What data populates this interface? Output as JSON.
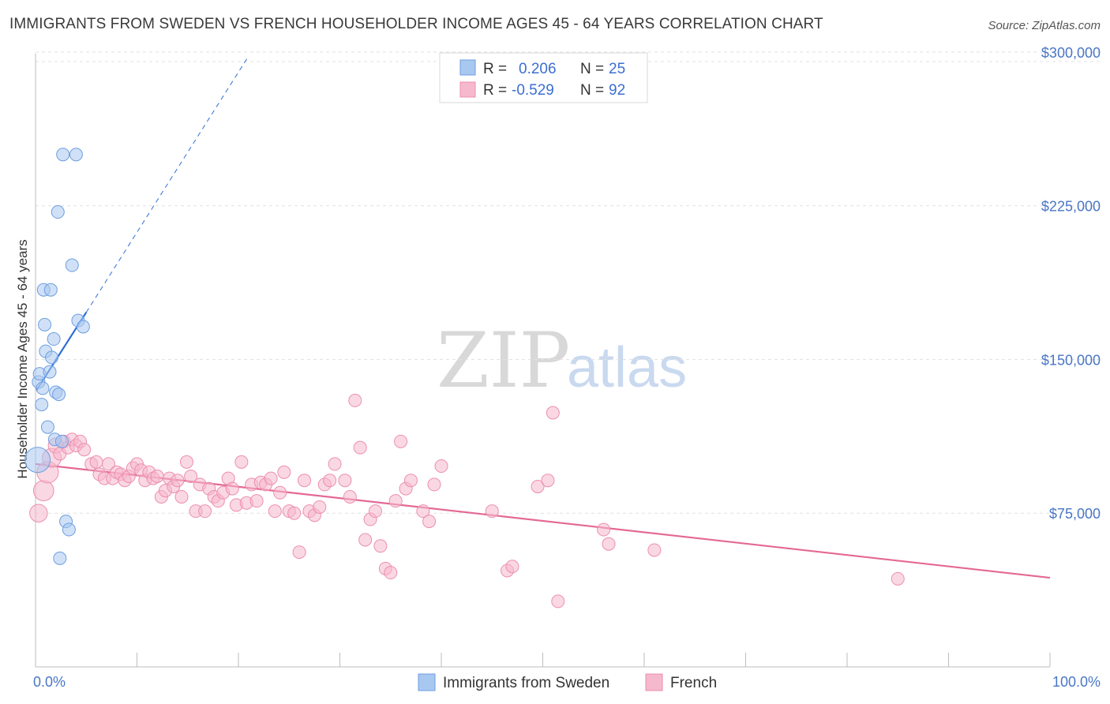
{
  "title": "IMMIGRANTS FROM SWEDEN VS FRENCH HOUSEHOLDER INCOME AGES 45 - 64 YEARS CORRELATION CHART",
  "source": "Source: ZipAtlas.com",
  "watermark": {
    "zip": "ZIP",
    "atlas": "atlas"
  },
  "colors": {
    "blue_fill": "#a9c8f0",
    "blue_stroke": "#6d9ee0",
    "blue_line": "#2f6fd6",
    "pink_fill": "#f6b8cc",
    "pink_stroke": "#ec8fae",
    "pink_line": "#e46895",
    "grid": "#e2e2e2",
    "axis_label": "#4a76c6"
  },
  "legend": {
    "rows": [
      {
        "r_label": "R =",
        "r_value": "0.206",
        "n_label": "N =",
        "n_value": "25",
        "series": "blue"
      },
      {
        "r_label": "R =",
        "r_value": "-0.529",
        "n_label": "N =",
        "n_value": "92",
        "series": "pink"
      }
    ]
  },
  "chart_data": {
    "type": "scatter",
    "title": "IMMIGRANTS FROM SWEDEN VS FRENCH HOUSEHOLDER INCOME AGES 45 - 64 YEARS CORRELATION CHART",
    "xlabel": "",
    "ylabel": "Householder Income Ages 45 - 64 years",
    "xlim": [
      0,
      100
    ],
    "ylim": [
      0,
      310000
    ],
    "x_tick_labels": [
      "0.0%",
      "100.0%"
    ],
    "y_ticks": [
      75000,
      150000,
      225000,
      300000
    ],
    "y_tick_labels": [
      "$75,000",
      "$150,000",
      "$225,000",
      "$300,000"
    ],
    "grid": true,
    "legend_position": "top-center",
    "series": [
      {
        "name": "Immigrants from Sweden",
        "color": "blue",
        "trend": {
          "x": [
            0.1,
            5.0
          ],
          "y": [
            135000,
            173000
          ],
          "extended_to": [
            21.0,
            298000
          ]
        },
        "points": [
          [
            0.2,
            101000,
            2.0
          ],
          [
            0.3,
            139000,
            1
          ],
          [
            0.4,
            143000,
            1
          ],
          [
            0.6,
            128000,
            1
          ],
          [
            0.7,
            136000,
            1
          ],
          [
            0.8,
            184000,
            1
          ],
          [
            0.9,
            167000,
            1
          ],
          [
            1.0,
            154000,
            1
          ],
          [
            1.2,
            117000,
            1
          ],
          [
            1.4,
            144000,
            1
          ],
          [
            1.5,
            184000,
            1
          ],
          [
            1.6,
            151000,
            1
          ],
          [
            1.8,
            160000,
            1
          ],
          [
            1.9,
            111000,
            1
          ],
          [
            2.0,
            134000,
            1
          ],
          [
            2.2,
            222000,
            1
          ],
          [
            2.3,
            133000,
            1
          ],
          [
            2.4,
            53000,
            1
          ],
          [
            2.6,
            110000,
            1
          ],
          [
            2.7,
            250000,
            1
          ],
          [
            3.0,
            71000,
            1
          ],
          [
            3.3,
            67000,
            1
          ],
          [
            3.6,
            196000,
            1
          ],
          [
            4.0,
            250000,
            1
          ],
          [
            4.2,
            169000,
            1
          ],
          [
            4.7,
            166000,
            1
          ]
        ]
      },
      {
        "name": "French",
        "color": "pink",
        "trend": {
          "x": [
            0.0,
            100.0
          ],
          "y": [
            99000,
            43500
          ]
        },
        "points": [
          [
            0.3,
            75000,
            1.4
          ],
          [
            0.8,
            86000,
            1.6
          ],
          [
            1.2,
            95000,
            1.7
          ],
          [
            1.6,
            102000,
            1.5
          ],
          [
            2.0,
            108000,
            1.2
          ],
          [
            2.4,
            104000,
            1
          ],
          [
            2.8,
            110000,
            1
          ],
          [
            3.2,
            107000,
            1
          ],
          [
            3.6,
            111000,
            1
          ],
          [
            4.0,
            108000,
            1
          ],
          [
            4.4,
            110000,
            1
          ],
          [
            4.8,
            106000,
            1
          ],
          [
            5.5,
            99000,
            1
          ],
          [
            6.0,
            100000,
            1
          ],
          [
            6.3,
            94000,
            1
          ],
          [
            6.8,
            92000,
            1
          ],
          [
            7.2,
            99000,
            1
          ],
          [
            7.6,
            92000,
            1
          ],
          [
            8.0,
            95000,
            1
          ],
          [
            8.4,
            94000,
            1
          ],
          [
            8.8,
            91000,
            1
          ],
          [
            9.2,
            93000,
            1
          ],
          [
            9.6,
            97000,
            1
          ],
          [
            10.0,
            99000,
            1
          ],
          [
            10.4,
            96000,
            1
          ],
          [
            10.8,
            91000,
            1
          ],
          [
            11.2,
            95000,
            1
          ],
          [
            11.6,
            92000,
            1
          ],
          [
            12.0,
            93000,
            1
          ],
          [
            12.4,
            83000,
            1
          ],
          [
            12.8,
            86000,
            1
          ],
          [
            13.2,
            92000,
            1
          ],
          [
            13.6,
            88000,
            1
          ],
          [
            14.0,
            91000,
            1
          ],
          [
            14.4,
            83000,
            1
          ],
          [
            14.9,
            100000,
            1
          ],
          [
            15.3,
            93000,
            1
          ],
          [
            15.8,
            76000,
            1
          ],
          [
            16.2,
            89000,
            1
          ],
          [
            16.7,
            76000,
            1
          ],
          [
            17.1,
            87000,
            1
          ],
          [
            17.6,
            83000,
            1
          ],
          [
            18.0,
            81000,
            1
          ],
          [
            18.5,
            85000,
            1
          ],
          [
            19.0,
            92000,
            1
          ],
          [
            19.4,
            87000,
            1
          ],
          [
            19.8,
            79000,
            1
          ],
          [
            20.3,
            100000,
            1
          ],
          [
            20.8,
            80000,
            1
          ],
          [
            21.3,
            89000,
            1
          ],
          [
            21.8,
            81000,
            1
          ],
          [
            22.2,
            90000,
            1
          ],
          [
            22.7,
            89000,
            1
          ],
          [
            23.2,
            92000,
            1
          ],
          [
            23.6,
            76000,
            1
          ],
          [
            24.1,
            85000,
            1
          ],
          [
            24.5,
            95000,
            1
          ],
          [
            25.0,
            76000,
            1
          ],
          [
            25.5,
            75000,
            1
          ],
          [
            26.0,
            56000,
            1
          ],
          [
            26.5,
            91000,
            1
          ],
          [
            27.0,
            76000,
            1
          ],
          [
            27.5,
            74000,
            1
          ],
          [
            28.0,
            78000,
            1
          ],
          [
            28.5,
            89000,
            1
          ],
          [
            29.0,
            91000,
            1
          ],
          [
            29.5,
            99000,
            1
          ],
          [
            30.5,
            91000,
            1
          ],
          [
            31.0,
            83000,
            1
          ],
          [
            31.5,
            130000,
            1
          ],
          [
            32.0,
            107000,
            1
          ],
          [
            32.5,
            62000,
            1
          ],
          [
            33.0,
            72000,
            1
          ],
          [
            33.5,
            76000,
            1
          ],
          [
            34.0,
            59000,
            1
          ],
          [
            34.5,
            48000,
            1
          ],
          [
            35.0,
            46000,
            1
          ],
          [
            35.5,
            81000,
            1
          ],
          [
            36.0,
            110000,
            1
          ],
          [
            36.5,
            87000,
            1
          ],
          [
            37.0,
            91000,
            1
          ],
          [
            38.2,
            76000,
            1
          ],
          [
            38.8,
            71000,
            1
          ],
          [
            39.3,
            89000,
            1
          ],
          [
            40.0,
            98000,
            1
          ],
          [
            45.0,
            76000,
            1
          ],
          [
            46.5,
            47000,
            1
          ],
          [
            47.0,
            49000,
            1
          ],
          [
            49.5,
            88000,
            1
          ],
          [
            50.5,
            91000,
            1
          ],
          [
            51.0,
            124000,
            1
          ],
          [
            51.5,
            32000,
            1
          ],
          [
            56.0,
            67000,
            1
          ],
          [
            56.5,
            60000,
            1
          ],
          [
            61.0,
            57000,
            1
          ],
          [
            85.0,
            43000,
            1
          ]
        ]
      }
    ]
  },
  "bottom_legend": {
    "items": [
      {
        "label": "Immigrants from Sweden",
        "series": "blue"
      },
      {
        "label": "French",
        "series": "pink"
      }
    ]
  }
}
